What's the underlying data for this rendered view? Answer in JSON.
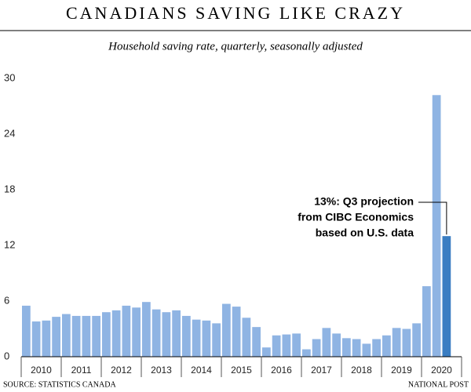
{
  "chart_data": {
    "type": "bar",
    "title": "CANADIANS SAVING LIKE CRAZY",
    "subtitle": "Household saving rate, quarterly, seasonally adjusted",
    "source": "SOURCE: STATISTICS CANADA",
    "credit": "NATIONAL POST",
    "annotation": [
      "13%: Q3 projection",
      "from CIBC Economics",
      "based on U.S. data"
    ],
    "years": [
      "2010",
      "2011",
      "2012",
      "2013",
      "2014",
      "2015",
      "2016",
      "2017",
      "2018",
      "2019",
      "2020"
    ],
    "values": [
      5.5,
      3.8,
      3.9,
      4.3,
      4.6,
      4.4,
      4.4,
      4.4,
      4.8,
      5.0,
      5.5,
      5.3,
      5.9,
      5.1,
      4.8,
      5.0,
      4.4,
      4.0,
      3.9,
      3.6,
      5.7,
      5.4,
      4.2,
      3.2,
      1.0,
      2.3,
      2.4,
      2.5,
      0.8,
      1.9,
      3.1,
      2.5,
      2.0,
      1.9,
      1.4,
      1.9,
      2.3,
      3.1,
      3.0,
      3.6,
      7.6,
      28.2,
      13.0
    ],
    "color": "#8fb4e3",
    "projection_color": "#3a7dc2",
    "ylim": [
      0,
      30
    ],
    "yticks": [
      0,
      6,
      12,
      18,
      24,
      30
    ]
  }
}
